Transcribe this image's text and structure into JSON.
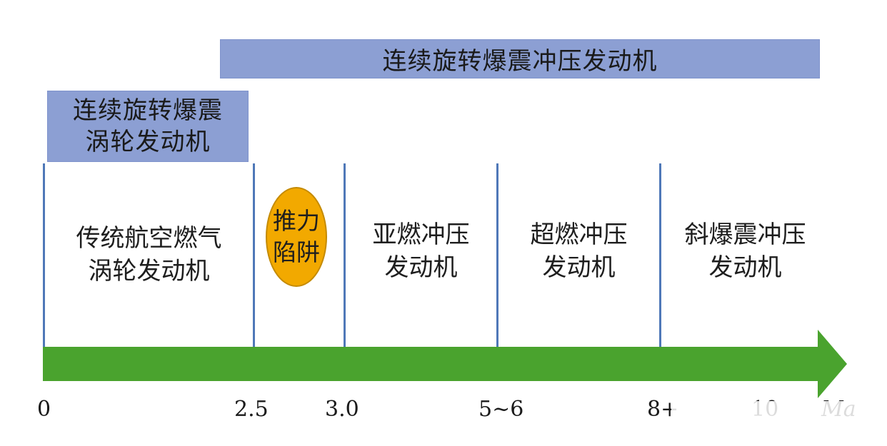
{
  "banners": {
    "top": "连续旋转爆震冲压发动机",
    "left_line1": "连续旋转爆震",
    "left_line2": "涡轮发动机"
  },
  "stages": [
    {
      "line1": "传统航空燃气",
      "line2": "涡轮发动机"
    },
    {
      "line1": "推力",
      "line2": "陷阱"
    },
    {
      "line1": "亚燃冲压",
      "line2": "发动机"
    },
    {
      "line1": "超燃冲压",
      "line2": "发动机"
    },
    {
      "line1": "斜爆震冲压",
      "line2": "发动机"
    }
  ],
  "axis": {
    "ticks": [
      "0",
      "2.5",
      "3.0",
      "5~6",
      "8+",
      "10"
    ],
    "unit": "Ma"
  },
  "colors": {
    "banner": "#8c9fd3",
    "divider": "#4f78b8",
    "arrow": "#4aa32e",
    "trap": "#f2a900"
  }
}
